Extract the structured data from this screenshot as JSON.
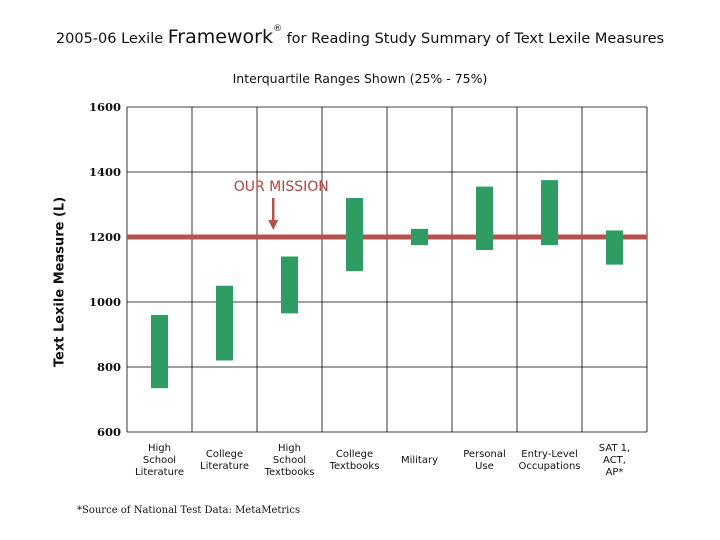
{
  "chart_data": {
    "type": "bar",
    "title_prefix": "2005-06 Lexile",
    "title_brand": "Framework",
    "title_mark": "®",
    "title_suffix": "for Reading Study Summary of Text Lexile Measures",
    "subtitle": "Interquartile Ranges Shown (25% - 75%)",
    "ylabel": "Text Lexile Measure (L)",
    "ylim": [
      600,
      1600
    ],
    "yticks": [
      "600",
      "800",
      "1000",
      "1200",
      "1400",
      "1600"
    ],
    "grid": true,
    "categories": [
      [
        "High",
        "School",
        "Literature"
      ],
      [
        "College",
        "Literature"
      ],
      [
        "High",
        "School",
        "Textbooks"
      ],
      [
        "College",
        "Textbooks"
      ],
      [
        "Military"
      ],
      [
        "Personal",
        "Use"
      ],
      [
        "Entry-Level",
        "Occupations"
      ],
      [
        "SAT 1,",
        "ACT,",
        "AP*"
      ]
    ],
    "ranges": [
      [
        735,
        960
      ],
      [
        820,
        1050
      ],
      [
        965,
        1140
      ],
      [
        1095,
        1320
      ],
      [
        1175,
        1225
      ],
      [
        1160,
        1355
      ],
      [
        1175,
        1375
      ],
      [
        1115,
        1220
      ]
    ],
    "reference_line": {
      "value": 1200,
      "label": "OUR MISSION"
    },
    "colors": {
      "bar": "#2e9c63",
      "reference": "#b5524c",
      "grid": "#000000"
    },
    "footnote": "*Source of National Test Data: MetaMetrics"
  }
}
